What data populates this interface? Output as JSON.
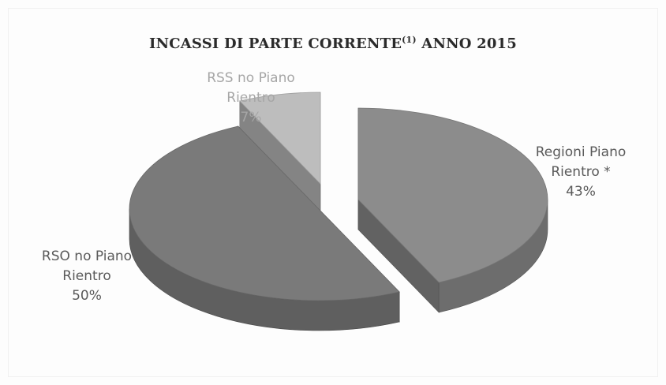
{
  "chart_data": {
    "type": "pie",
    "title": "INCASSI DI PARTE CORRENTE",
    "title_superscript": "(1)",
    "title_suffix": " ANNO 2015",
    "exploded": true,
    "three_d": true,
    "slices": [
      {
        "label_lines": [
          "Regioni Piano",
          "Rientro *"
        ],
        "pct_label": "43%",
        "value": 43,
        "color": "#8c8c8c"
      },
      {
        "label_lines": [
          "RSO no Piano",
          "Rientro"
        ],
        "pct_label": "50%",
        "value": 50,
        "color": "#7a7a7a"
      },
      {
        "label_lines": [
          "RSS no Piano",
          "Rientro"
        ],
        "pct_label": "7%",
        "value": 7,
        "color": "#bdbdbd"
      }
    ]
  }
}
